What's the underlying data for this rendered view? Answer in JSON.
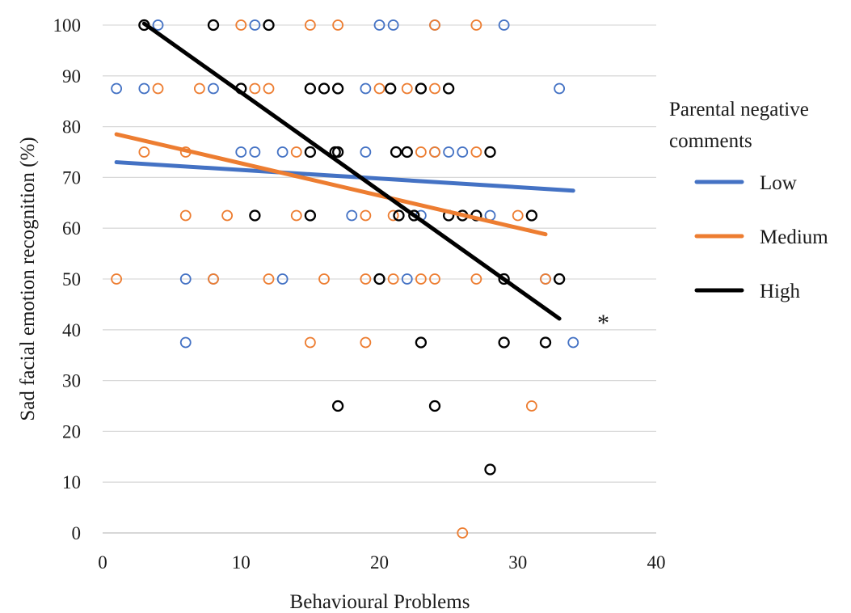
{
  "chart_data": {
    "type": "scatter",
    "title": "",
    "xlabel": "Behavioural Problems",
    "ylabel": "Sad facial emotion recognition (%)",
    "xlim": [
      0,
      40
    ],
    "ylim": [
      0,
      100
    ],
    "xticks": [
      "0",
      "10",
      "20",
      "30",
      "40"
    ],
    "yticks": [
      "0",
      "10",
      "20",
      "30",
      "40",
      "50",
      "60",
      "70",
      "80",
      "90",
      "100"
    ],
    "grid": "horizontal",
    "legend_title": "Parental negative comments",
    "legend_position": "right",
    "annotation": "*",
    "series": [
      {
        "name": "Low",
        "color": "#4472c4",
        "points": [
          [
            1,
            87.5
          ],
          [
            3,
            87.5
          ],
          [
            4,
            100
          ],
          [
            6,
            50
          ],
          [
            6,
            37.5
          ],
          [
            8,
            87.5
          ],
          [
            8,
            50
          ],
          [
            10,
            75
          ],
          [
            11,
            75
          ],
          [
            11,
            100
          ],
          [
            13,
            75
          ],
          [
            13,
            50
          ],
          [
            15,
            62.5
          ],
          [
            18,
            62.5
          ],
          [
            19,
            75
          ],
          [
            19,
            87.5
          ],
          [
            20,
            100
          ],
          [
            21,
            100
          ],
          [
            22,
            50
          ],
          [
            23,
            62.5
          ],
          [
            24,
            75
          ],
          [
            24,
            100
          ],
          [
            25,
            75
          ],
          [
            26,
            75
          ],
          [
            28,
            62.5
          ],
          [
            29,
            100
          ],
          [
            32,
            50
          ],
          [
            33,
            87.5
          ],
          [
            34,
            37.5
          ]
        ],
        "trend": [
          [
            1,
            73
          ],
          [
            34,
            67.4
          ]
        ]
      },
      {
        "name": "Medium",
        "color": "#ed7d31",
        "points": [
          [
            1,
            50
          ],
          [
            3,
            75
          ],
          [
            4,
            87.5
          ],
          [
            6,
            75
          ],
          [
            6,
            62.5
          ],
          [
            7,
            87.5
          ],
          [
            8,
            50
          ],
          [
            9,
            62.5
          ],
          [
            10,
            100
          ],
          [
            11,
            87.5
          ],
          [
            12,
            87.5
          ],
          [
            12,
            50
          ],
          [
            14,
            75
          ],
          [
            14,
            62.5
          ],
          [
            15,
            100
          ],
          [
            15,
            37.5
          ],
          [
            16,
            50
          ],
          [
            17,
            100
          ],
          [
            19,
            62.5
          ],
          [
            19,
            50
          ],
          [
            19,
            37.5
          ],
          [
            20,
            87.5
          ],
          [
            21,
            62.5
          ],
          [
            21,
            50
          ],
          [
            22,
            87.5
          ],
          [
            23,
            75
          ],
          [
            23,
            50
          ],
          [
            24,
            87.5
          ],
          [
            24,
            75
          ],
          [
            24,
            50
          ],
          [
            24,
            100
          ],
          [
            26,
            0
          ],
          [
            27,
            100
          ],
          [
            27,
            75
          ],
          [
            27,
            50
          ],
          [
            30,
            62.5
          ],
          [
            31,
            25
          ],
          [
            32,
            50
          ]
        ],
        "trend": [
          [
            1,
            78.5
          ],
          [
            32,
            58.8
          ]
        ]
      },
      {
        "name": "High",
        "color": "#000000",
        "points": [
          [
            3,
            100
          ],
          [
            8,
            100
          ],
          [
            10,
            87.5
          ],
          [
            11,
            62.5
          ],
          [
            12,
            100
          ],
          [
            15,
            87.5
          ],
          [
            15,
            75
          ],
          [
            15,
            62.5
          ],
          [
            16,
            87.5
          ],
          [
            17,
            87.5
          ],
          [
            16.8,
            75
          ],
          [
            17,
            75
          ],
          [
            17,
            25
          ],
          [
            20,
            50
          ],
          [
            20.8,
            87.5
          ],
          [
            21.2,
            75
          ],
          [
            21.4,
            62.5
          ],
          [
            22,
            75
          ],
          [
            22.5,
            62.5
          ],
          [
            23,
            87.5
          ],
          [
            23,
            37.5
          ],
          [
            24,
            25
          ],
          [
            25,
            87.5
          ],
          [
            25,
            62.5
          ],
          [
            26,
            62.5
          ],
          [
            27,
            62.5
          ],
          [
            28,
            75
          ],
          [
            28,
            12.5
          ],
          [
            29,
            50
          ],
          [
            29,
            37.5
          ],
          [
            31,
            62.5
          ],
          [
            32,
            37.5
          ],
          [
            33,
            50
          ]
        ],
        "trend": [
          [
            3,
            100.3
          ],
          [
            33,
            42.2
          ]
        ]
      }
    ]
  }
}
